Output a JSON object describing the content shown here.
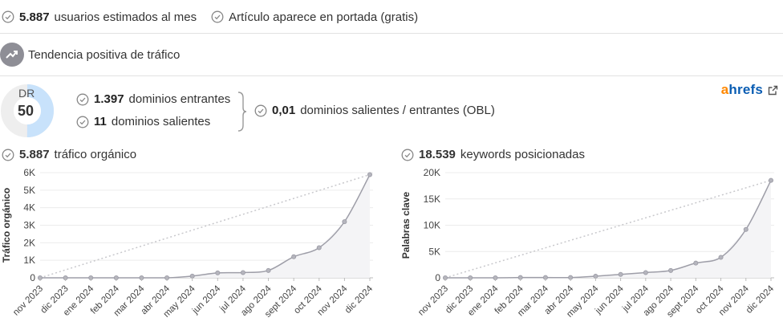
{
  "top_stats": [
    {
      "value": "5.887",
      "text": "usuarios estimados al mes"
    },
    {
      "value": "",
      "text": "Artículo aparece en portada (gratis)"
    }
  ],
  "trend": {
    "label": "Tendencia positiva de tráfico",
    "icon": "trend-up-icon"
  },
  "dr": {
    "label": "DR",
    "value": "50",
    "fill_fraction": 0.5,
    "color": "#c8e2fb",
    "track": "#eeeeee"
  },
  "links": {
    "incoming": {
      "value": "1.397",
      "text": "dominios entrantes"
    },
    "outgoing": {
      "value": "11",
      "text": "dominios salientes"
    },
    "obl": {
      "value": "0,01",
      "text": "dominios salientes / entrantes (OBL)"
    }
  },
  "ahrefs": {
    "brand_a": "a",
    "brand_rest": "hrefs",
    "icon": "external-link-icon",
    "color_a": "#ff8800",
    "color_rest": "#0a5db3"
  },
  "chart_data": [
    {
      "type": "line",
      "title_value": "5.887",
      "title_text": "tráfico orgánico",
      "ylabel": "Tráfico orgánico",
      "categories": [
        "nov 2023",
        "dic 2023",
        "ene 2024",
        "feb 2024",
        "mar 2024",
        "abr 2024",
        "may 2024",
        "jun 2024",
        "jul 2024",
        "ago 2024",
        "sept 2024",
        "oct 2024",
        "nov 2024",
        "dic 2024"
      ],
      "values": [
        0,
        0,
        0,
        0,
        0,
        0,
        100,
        280,
        300,
        420,
        1200,
        1720,
        3200,
        5887
      ],
      "ylim": [
        0,
        6000
      ],
      "yticks": [
        0,
        1000,
        2000,
        3000,
        4000,
        5000,
        6000
      ],
      "ytick_labels": [
        "0",
        "1K",
        "2K",
        "3K",
        "4K",
        "5K",
        "6K"
      ],
      "grid": true,
      "trend_line": true,
      "line_color": "#9e9ea8",
      "fill_color": "#f4f4f6"
    },
    {
      "type": "line",
      "title_value": "18.539",
      "title_text": "keywords posicionadas",
      "ylabel": "Palabras clave",
      "categories": [
        "nov 2023",
        "dic 2023",
        "ene 2024",
        "feb 2024",
        "mar 2024",
        "abr 2024",
        "may 2024",
        "jun 2024",
        "jul 2024",
        "ago 2024",
        "sept 2024",
        "oct 2024",
        "nov 2024",
        "dic 2024"
      ],
      "values": [
        0,
        0,
        0,
        50,
        50,
        50,
        300,
        650,
        1000,
        1400,
        2800,
        3900,
        9200,
        18539
      ],
      "ylim": [
        0,
        20000
      ],
      "yticks": [
        0,
        5000,
        10000,
        15000,
        20000
      ],
      "ytick_labels": [
        "0",
        "5K",
        "10K",
        "15K",
        "20K"
      ],
      "grid": true,
      "trend_line": true,
      "line_color": "#9e9ea8",
      "fill_color": "#f4f4f6"
    }
  ]
}
